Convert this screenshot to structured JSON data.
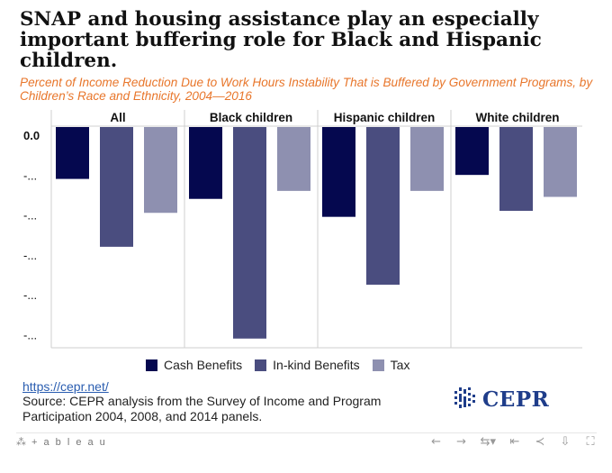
{
  "title": "SNAP and housing assistance play an especially important buffering role for Black and Hispanic children.",
  "subtitle": "Percent of Income Reduction Due to Work Hours Instability That is Buffered by Government Programs, by Children’s Race and Ethnicity, 2004—2016",
  "colors": {
    "cash": "#05084f",
    "inkind": "#4a4d7f",
    "tax": "#8e90b0",
    "subtitle": "#e8762b"
  },
  "chart_data": {
    "type": "bar",
    "panels": [
      "All",
      "Black children",
      "Hispanic children",
      "White children"
    ],
    "series": [
      {
        "name": "Cash Benefits",
        "values": [
          -1.3,
          -1.8,
          -2.25,
          -1.2
        ]
      },
      {
        "name": "In-kind Benefits",
        "values": [
          -3.0,
          -5.3,
          -3.95,
          -2.1
        ]
      },
      {
        "name": "Tax",
        "values": [
          -2.15,
          -1.6,
          -1.6,
          -1.75
        ]
      }
    ],
    "y_ticks": [
      "0.0",
      "-...",
      "-...",
      "-...",
      "-...",
      "-..."
    ],
    "y_tick_values": [
      0,
      -1,
      -2,
      -3,
      -4,
      -5
    ],
    "ylim": [
      -5.55,
      0.3
    ],
    "legend_position": "bottom",
    "grid": false
  },
  "legend": {
    "items": [
      "Cash Benefits",
      "In-kind Benefits",
      "Tax"
    ]
  },
  "footer": {
    "link": "https://cepr.net/",
    "source": "Source: CEPR analysis from the Survey of Income and Program Participation 2004, 2008, and 2014 panels.",
    "logo_text": "CEPR"
  },
  "toolbar": {
    "brand": "+ a b l e a u",
    "icons": [
      "undo-icon",
      "redo-icon",
      "revert-icon",
      "reset-icon",
      "share-icon",
      "download-icon",
      "fullscreen-icon"
    ]
  }
}
